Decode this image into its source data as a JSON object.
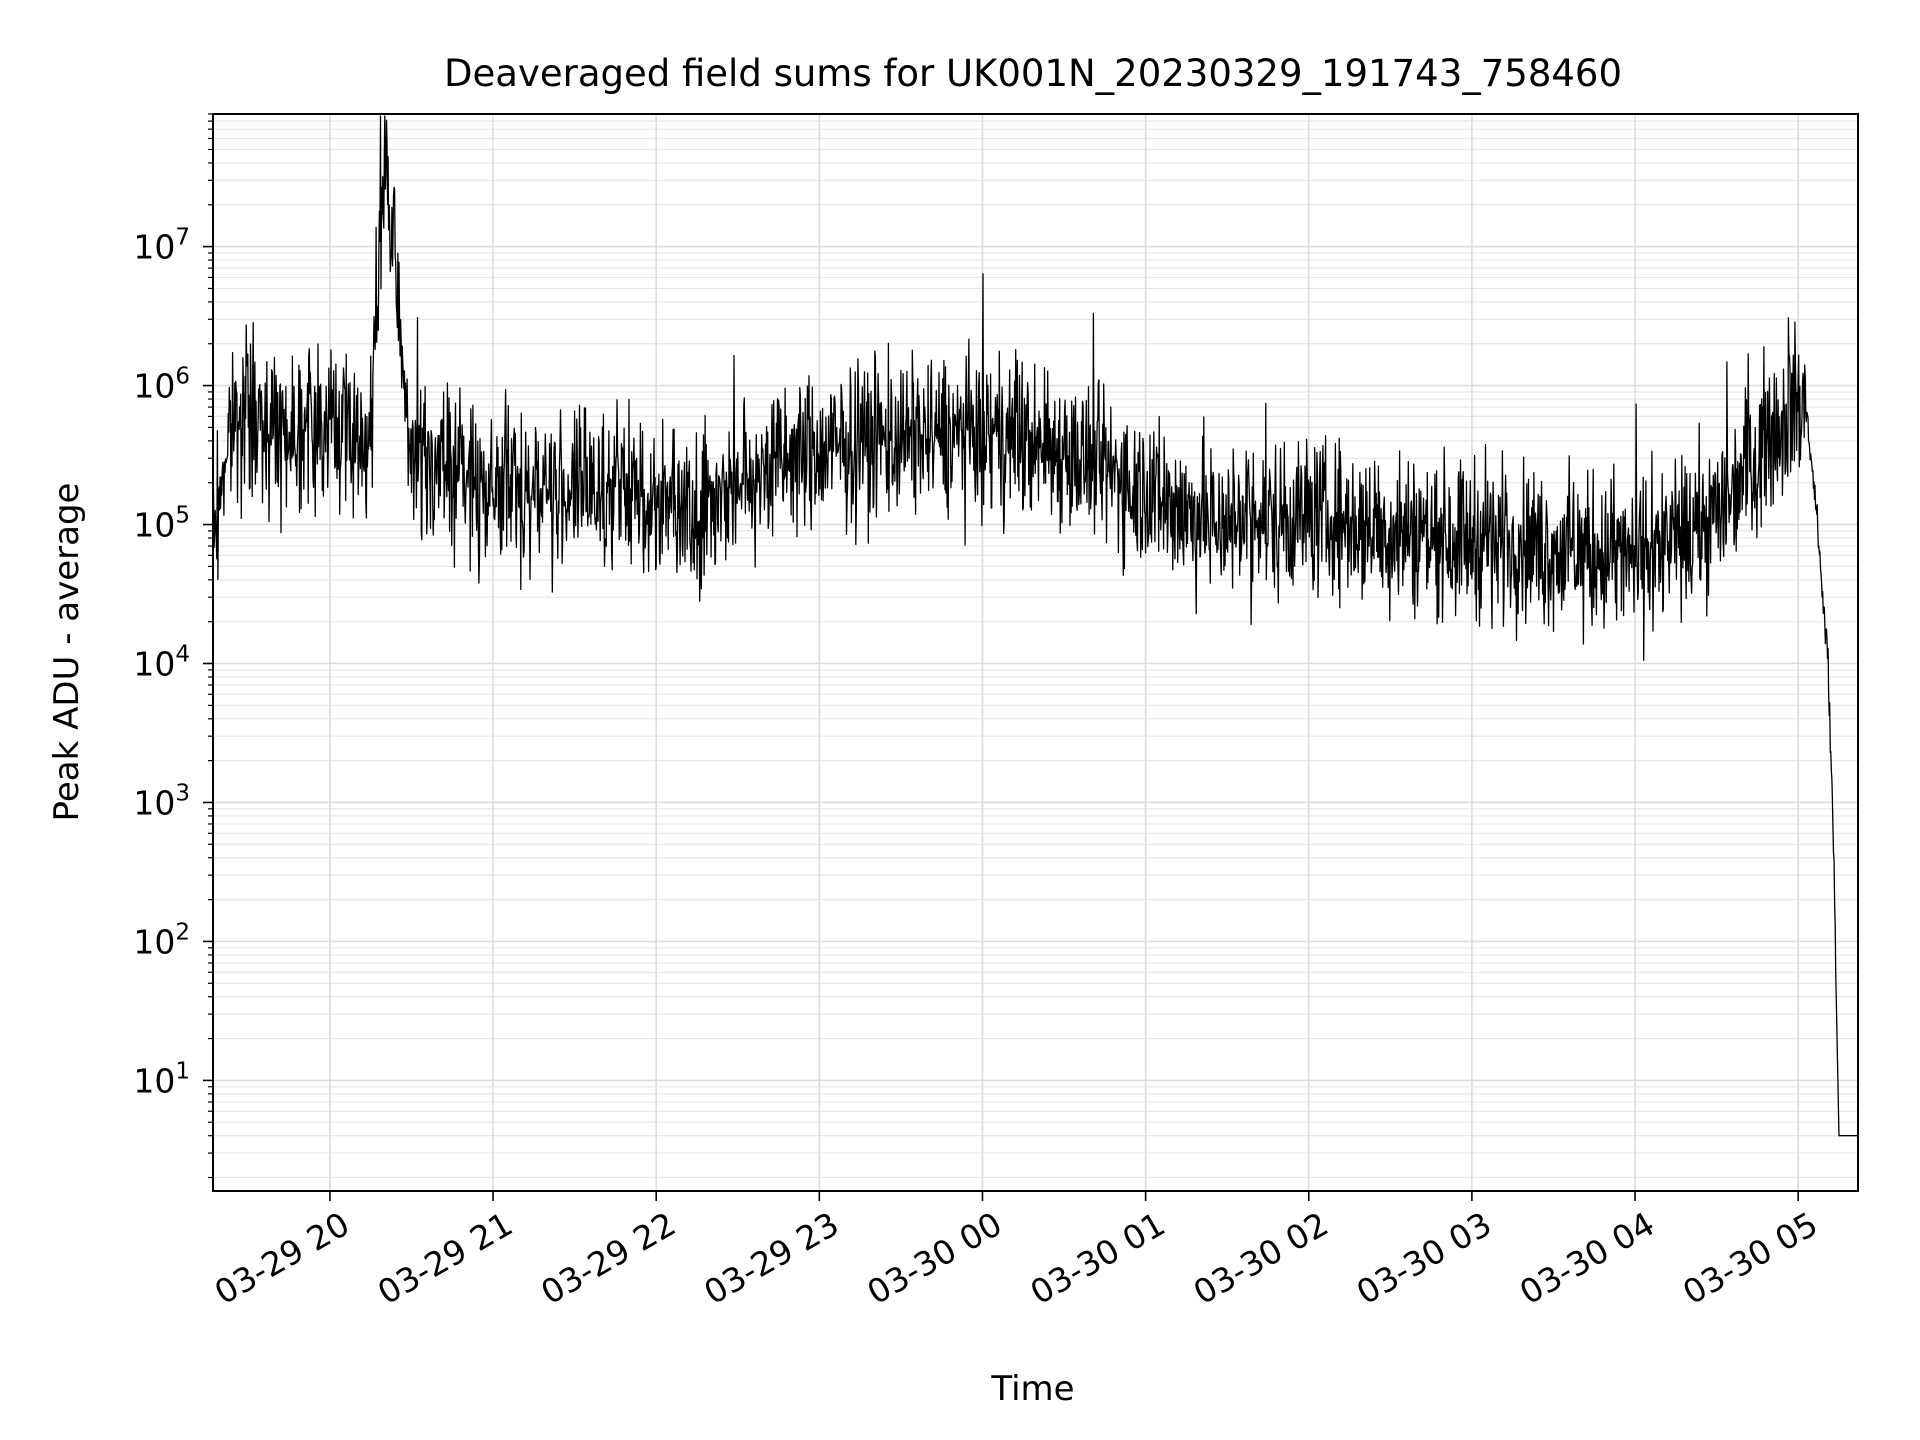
{
  "chart_data": {
    "type": "line",
    "title": "Deaveraged field sums for UK001N_20230329_191743_758460",
    "xlabel": "Time",
    "ylabel": "Peak ADU - average",
    "xlim": [
      "2023-03-29 19:17",
      "2023-03-30 05:22"
    ],
    "ylim": [
      1.6,
      90000000
    ],
    "yscale": "log",
    "grid": true,
    "legend": "none",
    "x_tick_labels": [
      "03-29 20",
      "03-29 21",
      "03-29 22",
      "03-29 23",
      "03-30 00",
      "03-30 01",
      "03-30 02",
      "03-30 03",
      "03-30 04",
      "03-30 05"
    ],
    "y_tick_labels": [
      {
        "base": "10",
        "exp": "1"
      },
      {
        "base": "10",
        "exp": "2"
      },
      {
        "base": "10",
        "exp": "3"
      },
      {
        "base": "10",
        "exp": "4"
      },
      {
        "base": "10",
        "exp": "5"
      },
      {
        "base": "10",
        "exp": "6"
      },
      {
        "base": "10",
        "exp": "7"
      }
    ],
    "series": [
      {
        "color": "#000000",
        "x": [
          "2023-03-29 19:17",
          "2023-03-29 19:20",
          "2023-03-29 19:25",
          "2023-03-29 19:35",
          "2023-03-29 19:45",
          "2023-03-29 19:55",
          "2023-03-29 20:05",
          "2023-03-29 20:15",
          "2023-03-29 20:20",
          "2023-03-29 20:30",
          "2023-03-29 20:45",
          "2023-03-29 21:00",
          "2023-03-29 21:15",
          "2023-03-29 21:30",
          "2023-03-29 21:45",
          "2023-03-29 22:00",
          "2023-03-29 22:15",
          "2023-03-29 22:30",
          "2023-03-29 22:45",
          "2023-03-29 23:00",
          "2023-03-29 23:15",
          "2023-03-29 23:30",
          "2023-03-29 23:45",
          "2023-03-30 00:00",
          "2023-03-30 00:15",
          "2023-03-30 00:30",
          "2023-03-30 00:45",
          "2023-03-30 01:00",
          "2023-03-30 01:15",
          "2023-03-30 01:30",
          "2023-03-30 01:45",
          "2023-03-30 02:00",
          "2023-03-30 02:15",
          "2023-03-30 02:30",
          "2023-03-30 02:45",
          "2023-03-30 03:00",
          "2023-03-30 03:15",
          "2023-03-30 03:30",
          "2023-03-30 03:45",
          "2023-03-30 04:00",
          "2023-03-30 04:15",
          "2023-03-30 04:30",
          "2023-03-30 04:45",
          "2023-03-30 05:00",
          "2023-03-30 05:03",
          "2023-03-30 05:06",
          "2023-03-30 05:09",
          "2023-03-30 05:11",
          "2023-03-30 05:13",
          "2023-03-30 05:14",
          "2023-03-30 05:15",
          "2023-03-30 05:17",
          "2023-03-30 05:22"
        ],
        "y": [
          80000,
          200000,
          600000,
          550000,
          500000,
          550000,
          450000,
          400000,
          45000000,
          300000,
          250000,
          180000,
          170000,
          180000,
          180000,
          150000,
          130000,
          200000,
          280000,
          320000,
          380000,
          420000,
          450000,
          420000,
          400000,
          330000,
          250000,
          180000,
          120000,
          100000,
          110000,
          120000,
          100000,
          90000,
          85000,
          80000,
          75000,
          65000,
          60000,
          58000,
          70000,
          120000,
          350000,
          800000,
          600000,
          200000,
          30000,
          10000,
          500,
          40,
          4,
          4,
          4
        ]
      }
    ]
  }
}
